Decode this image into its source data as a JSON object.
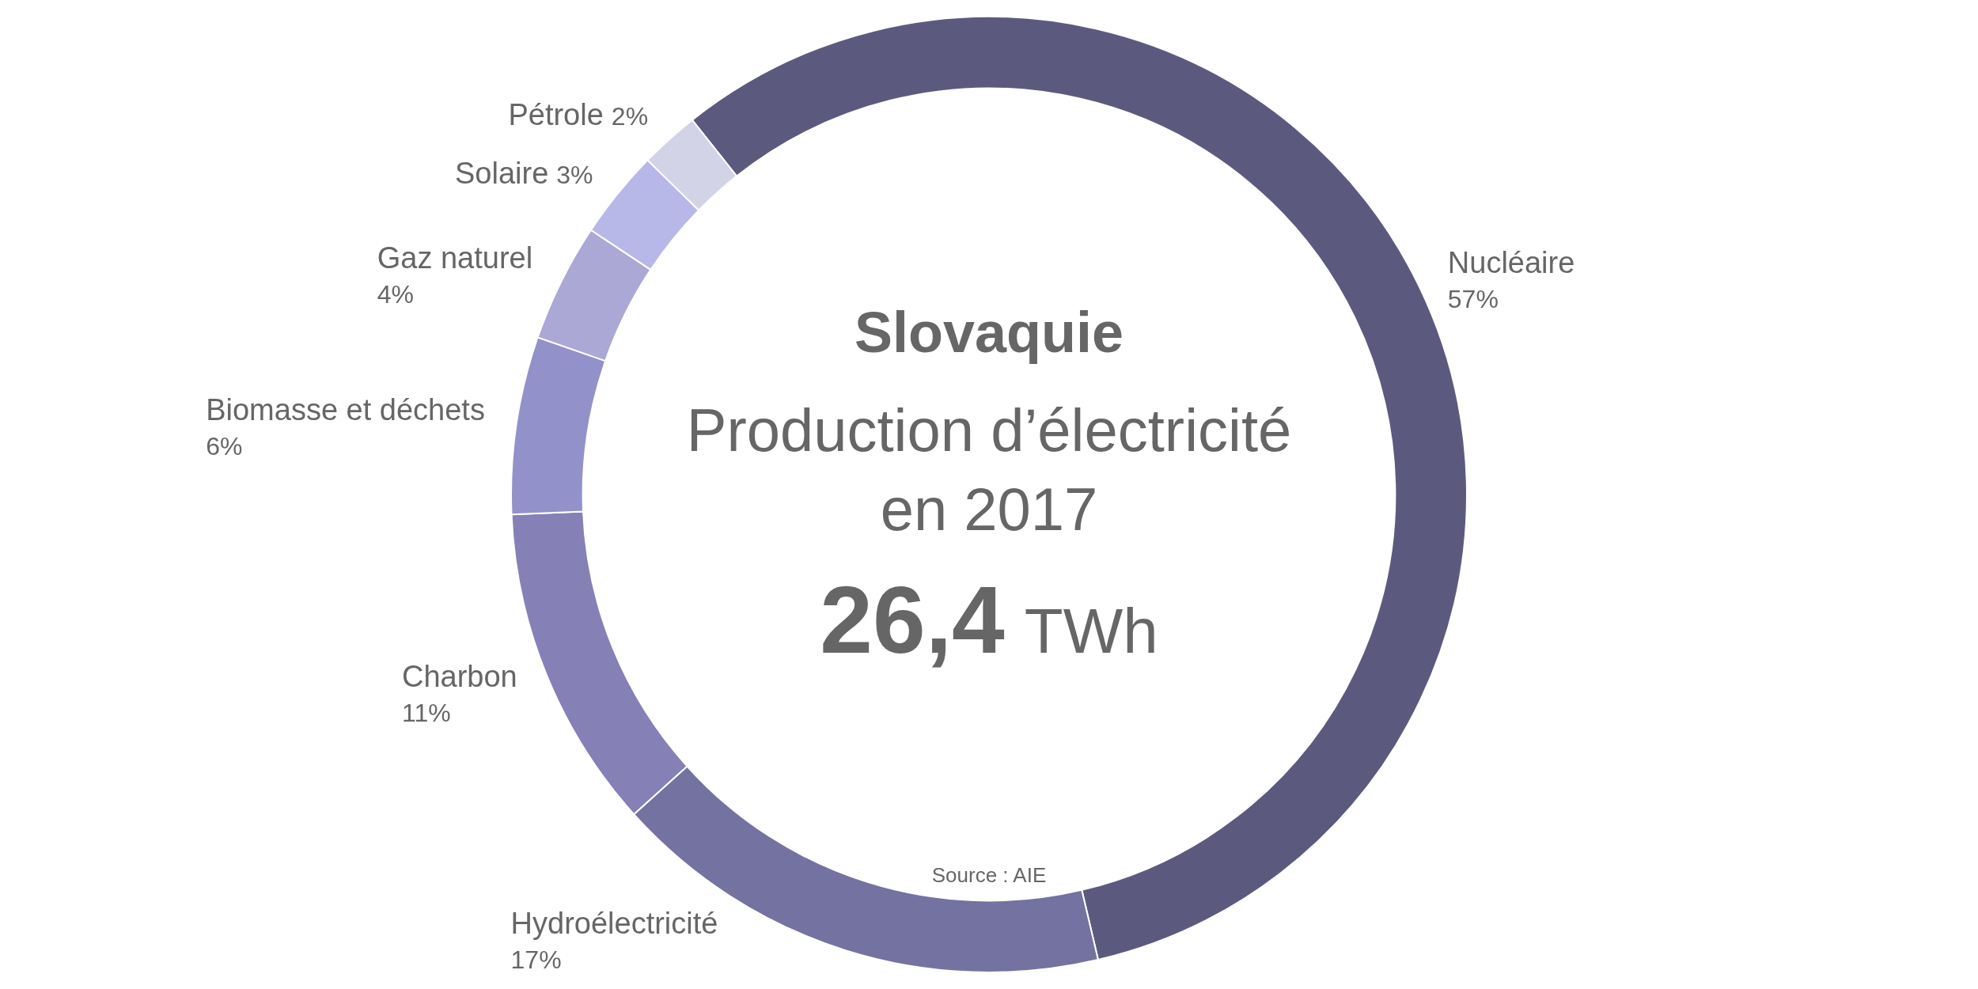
{
  "chart_data": {
    "type": "donut",
    "title": "Slovaquie",
    "subtitle": "Production d’électricité en 2017",
    "categories": [
      "Nucléaire",
      "Hydroélectricité",
      "Charbon",
      "Biomasse et déchets",
      "Gaz naturel",
      "Solaire",
      "Pétrole"
    ],
    "values": [
      57,
      17,
      11,
      6,
      4,
      3,
      2
    ],
    "value_labels": [
      "57%",
      "17%",
      "11%",
      "6%",
      "4%",
      "3%",
      "2%"
    ],
    "colors": [
      "#5b5a7e",
      "#7372a0",
      "#8580b5",
      "#9391c9",
      "#aba8d6",
      "#b7b7e8",
      "#d3d3e8"
    ],
    "annotations": [
      "26,4 TWh",
      "Source : AIE"
    ],
    "legend": false
  }
}
